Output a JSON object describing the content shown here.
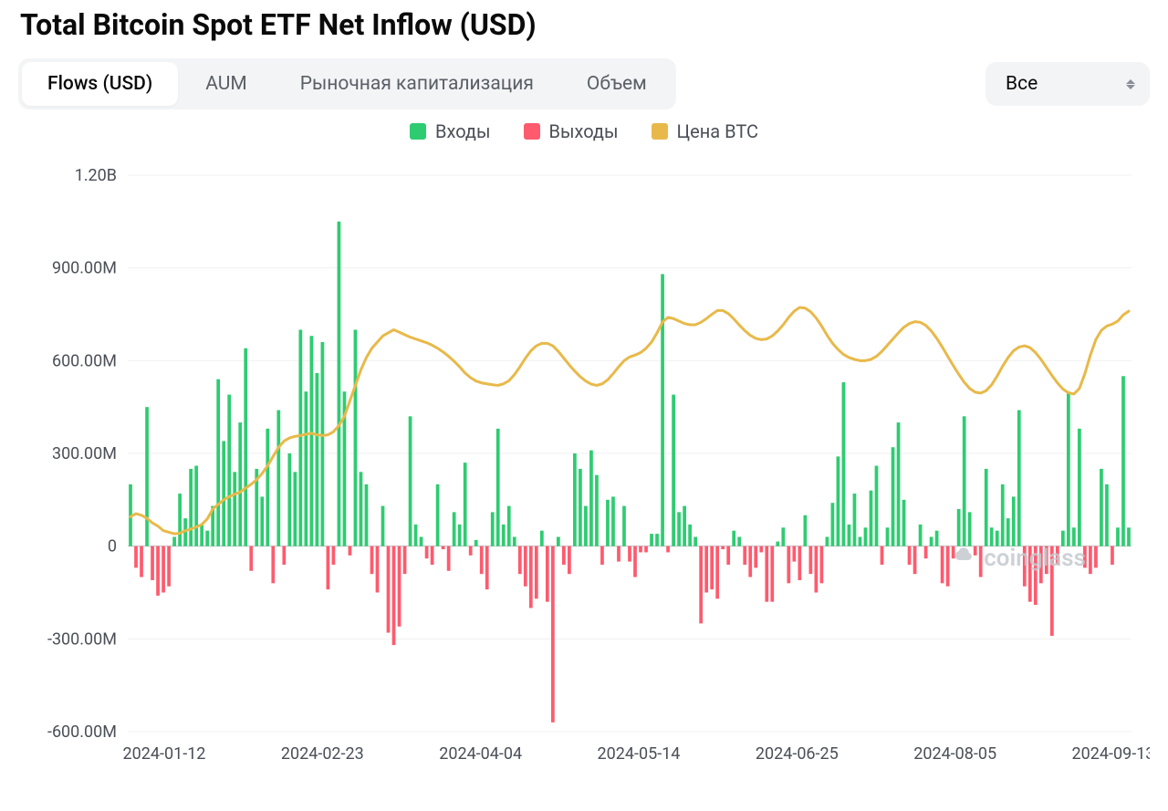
{
  "title": "Total Bitcoin Spot ETF Net Inflow (USD)",
  "tabs": [
    {
      "label": "Flows (USD)",
      "active": true
    },
    {
      "label": "AUM",
      "active": false
    },
    {
      "label": "Рыночная капитализация",
      "active": false
    },
    {
      "label": "Объем",
      "active": false
    }
  ],
  "dropdown": {
    "selected": "Все"
  },
  "legend": {
    "inflow": "Входы",
    "outflow": "Выходы",
    "price": "Цена BTC"
  },
  "watermark": "coinglass",
  "chart": {
    "type": "bar+line",
    "background_color": "#ffffff",
    "grid_color": "#f0f1f3",
    "zero_line_color": "#b8bcc2",
    "inflow_color": "#2ecc71",
    "outflow_color": "#ff5a6e",
    "price_color": "#e8b94a",
    "label_color": "#4a4f57",
    "label_fontsize": 18,
    "bar_width_ratio": 0.62,
    "price_line_width": 3,
    "ylim": [
      -600,
      1200
    ],
    "ytick_step": 300,
    "ytick_labels": [
      "-600.00M",
      "-300.00M",
      "0",
      "300.00M",
      "600.00M",
      "900.00M",
      "1.20B"
    ],
    "x_labels": [
      "2024-01-12",
      "2024-02-23",
      "2024-04-04",
      "2024-05-14",
      "2024-06-25",
      "2024-08-05",
      "2024-09-13"
    ],
    "bars": [
      200,
      -70,
      -100,
      450,
      -110,
      -160,
      -150,
      -130,
      30,
      170,
      90,
      250,
      260,
      70,
      50,
      130,
      540,
      340,
      490,
      240,
      400,
      640,
      -80,
      250,
      160,
      380,
      -120,
      440,
      -60,
      300,
      240,
      700,
      500,
      680,
      560,
      660,
      -140,
      -60,
      1050,
      500,
      -30,
      700,
      240,
      200,
      -90,
      -150,
      130,
      -280,
      -320,
      -260,
      -90,
      420,
      70,
      30,
      -40,
      -60,
      200,
      -10,
      -80,
      110,
      70,
      270,
      -30,
      20,
      -90,
      -140,
      110,
      380,
      70,
      130,
      30,
      -90,
      -130,
      -200,
      -170,
      50,
      -180,
      -570,
      30,
      -60,
      -90,
      300,
      250,
      130,
      310,
      230,
      -60,
      150,
      160,
      -50,
      130,
      -50,
      -100,
      -20,
      -20,
      40,
      40,
      880,
      -20,
      490,
      110,
      130,
      70,
      30,
      -250,
      -150,
      -140,
      -170,
      -10,
      -60,
      50,
      30,
      -60,
      -100,
      -70,
      -20,
      -180,
      -180,
      15,
      60,
      -120,
      -50,
      -110,
      100,
      -90,
      -150,
      -120,
      30,
      140,
      290,
      530,
      70,
      170,
      30,
      60,
      180,
      260,
      -60,
      60,
      320,
      400,
      150,
      -60,
      -90,
      70,
      -40,
      30,
      50,
      -120,
      -130,
      -40,
      120,
      420,
      110,
      -30,
      -100,
      250,
      60,
      50,
      200,
      90,
      160,
      440,
      -130,
      -180,
      -190,
      -120,
      -90,
      -290,
      -60,
      50,
      500,
      60,
      380,
      -70,
      -90,
      -70,
      250,
      200,
      -60,
      60,
      550,
      60
    ],
    "price": [
      95,
      105,
      100,
      90,
      75,
      65,
      50,
      45,
      40,
      42,
      50,
      55,
      62,
      70,
      88,
      120,
      135,
      150,
      160,
      168,
      175,
      188,
      200,
      215,
      235,
      260,
      290,
      320,
      340,
      350,
      355,
      358,
      362,
      365,
      360,
      358,
      360,
      370,
      390,
      420,
      470,
      520,
      570,
      610,
      640,
      660,
      680,
      690,
      700,
      692,
      684,
      676,
      670,
      664,
      658,
      650,
      640,
      628,
      614,
      598,
      580,
      560,
      545,
      534,
      528,
      525,
      522,
      520,
      525,
      535,
      555,
      580,
      608,
      632,
      648,
      656,
      656,
      648,
      630,
      608,
      586,
      566,
      548,
      534,
      524,
      520,
      525,
      538,
      558,
      580,
      600,
      612,
      618,
      626,
      640,
      660,
      690,
      725,
      740,
      736,
      728,
      720,
      716,
      716,
      724,
      736,
      750,
      762,
      762,
      752,
      735,
      715,
      697,
      682,
      672,
      668,
      670,
      680,
      696,
      716,
      740,
      760,
      772,
      770,
      758,
      738,
      712,
      682,
      656,
      636,
      620,
      610,
      604,
      600,
      600,
      604,
      614,
      630,
      650,
      670,
      690,
      708,
      720,
      726,
      724,
      714,
      696,
      672,
      644,
      614,
      584,
      556,
      530,
      510,
      498,
      495,
      503,
      522,
      550,
      582,
      610,
      632,
      644,
      648,
      642,
      626,
      604,
      578,
      552,
      528,
      508,
      496,
      492,
      510,
      558,
      618,
      668,
      698,
      712,
      718,
      728,
      748,
      760
    ]
  }
}
